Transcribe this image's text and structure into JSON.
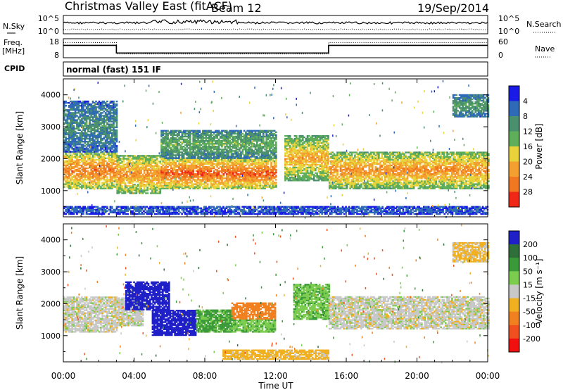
{
  "header": {
    "station": "Christmas Valley East (fitACF)",
    "beam": "Beam 12",
    "date": "19/Sep/2014"
  },
  "noise_panel": {
    "left_label": "N.Sky",
    "right_label": "N.Search",
    "left_ticks": [
      "10^5",
      "10^0"
    ],
    "right_ticks": [
      "10^5",
      "10^0"
    ]
  },
  "freq_panel": {
    "left_label_1": "Freq.",
    "left_label_2": "[MHz]",
    "right_label": "Nave",
    "left_ticks": [
      "18",
      "8"
    ],
    "right_ticks": [
      "60",
      "0"
    ],
    "freq_mhz": [
      {
        "from": 0,
        "to": 3,
        "value": 14.5
      },
      {
        "from": 3,
        "to": 15,
        "value": 10.5
      },
      {
        "from": 15,
        "to": 24,
        "value": 14.5
      }
    ],
    "nave": [
      {
        "from": 0,
        "to": 3,
        "value": 48
      },
      {
        "from": 3,
        "to": 15,
        "value": 12
      },
      {
        "from": 15,
        "to": 24,
        "value": 48
      }
    ]
  },
  "cpid": {
    "label": "CPID",
    "text": "normal (fast) 151 IF"
  },
  "time_axis": {
    "title": "Time UT",
    "ticks": [
      "00:00",
      "04:00",
      "08:00",
      "12:00",
      "16:00",
      "20:00",
      "00:00"
    ]
  },
  "chart_data": [
    {
      "type": "heatmap",
      "name": "Power",
      "xlabel": "Time UT",
      "ylabel": "Slant Range [km]",
      "xlim": [
        0,
        24
      ],
      "ylim": [
        180,
        4500
      ],
      "ytick_labels": [
        "1000",
        "2000",
        "3000",
        "4000"
      ],
      "ytick_values": [
        1000,
        2000,
        3000,
        4000
      ],
      "colorbar": {
        "label": "Power [dB]",
        "tick_labels": [
          "4",
          "8",
          "12",
          "16",
          "20",
          "24",
          "28"
        ],
        "bins": [
          {
            "color": "#1a1ae6",
            "min": 0,
            "max": 4
          },
          {
            "color": "#2e6ab8",
            "min": 4,
            "max": 8
          },
          {
            "color": "#4a8f6e",
            "min": 8,
            "max": 12
          },
          {
            "color": "#5fae5a",
            "min": 12,
            "max": 16
          },
          {
            "color": "#e8d43a",
            "min": 16,
            "max": 20
          },
          {
            "color": "#f4a030",
            "min": 20,
            "max": 24
          },
          {
            "color": "#f07820",
            "min": 24,
            "max": 28
          },
          {
            "color": "#f02818",
            "min": 28,
            "max": 32
          }
        ]
      },
      "regions": [
        {
          "t0": 0,
          "t1": 3,
          "r0": 1050,
          "r1": 2200,
          "level": 26
        },
        {
          "t0": 0,
          "t1": 3,
          "r0": 2200,
          "r1": 3800,
          "level": 10
        },
        {
          "t0": 3,
          "t1": 5.5,
          "r0": 900,
          "r1": 2100,
          "level": 24
        },
        {
          "t0": 5.5,
          "t1": 12,
          "r0": 1050,
          "r1": 2000,
          "level": 28
        },
        {
          "t0": 5.5,
          "t1": 12,
          "r0": 2000,
          "r1": 2900,
          "level": 14
        },
        {
          "t0": 12.5,
          "t1": 15,
          "r0": 1300,
          "r1": 2700,
          "level": 22
        },
        {
          "t0": 15,
          "t1": 24,
          "r0": 1050,
          "r1": 2200,
          "level": 24
        },
        {
          "t0": 22,
          "t1": 24,
          "r0": 3300,
          "r1": 4000,
          "level": 12
        },
        {
          "t0": 0,
          "t1": 24,
          "r0": 250,
          "r1": 500,
          "level": 6
        }
      ]
    },
    {
      "type": "heatmap",
      "name": "Velocity",
      "xlabel": "Time UT",
      "ylabel": "Slant Range [km]",
      "xlim": [
        0,
        24
      ],
      "ylim": [
        180,
        4500
      ],
      "ytick_labels": [
        "1000",
        "2000",
        "3000",
        "4000"
      ],
      "ytick_values": [
        1000,
        2000,
        3000,
        4000
      ],
      "colorbar": {
        "label": "Velocity [m s⁻¹]",
        "tick_labels": [
          "200",
          "100",
          "50",
          "15",
          "-15",
          "-50",
          "-100",
          "-200"
        ],
        "bins": [
          {
            "color": "#2020c8",
            "min": 150,
            "max": 250
          },
          {
            "color": "#2f6f3a",
            "min": 100,
            "max": 150
          },
          {
            "color": "#3a9a3a",
            "min": 50,
            "max": 100
          },
          {
            "color": "#7ccc50",
            "min": 15,
            "max": 50
          },
          {
            "color": "#c8c8c8",
            "min": -15,
            "max": 15
          },
          {
            "color": "#f0b020",
            "min": -50,
            "max": -15
          },
          {
            "color": "#f08020",
            "min": -100,
            "max": -50
          },
          {
            "color": "#f05020",
            "min": -150,
            "max": -100
          },
          {
            "color": "#f01010",
            "min": -250,
            "max": -150
          }
        ]
      },
      "regions": [
        {
          "t0": 0,
          "t1": 3,
          "r0": 1100,
          "r1": 2200,
          "level": 0
        },
        {
          "t0": 3,
          "t1": 4.5,
          "r0": 1300,
          "r1": 2200,
          "level": 0
        },
        {
          "t0": 3.5,
          "t1": 6,
          "r0": 1800,
          "r1": 2700,
          "level": 180
        },
        {
          "t0": 5,
          "t1": 7.5,
          "r0": 1000,
          "r1": 1800,
          "level": 180
        },
        {
          "t0": 7.5,
          "t1": 9.5,
          "r0": 1100,
          "r1": 1800,
          "level": 60
        },
        {
          "t0": 9.5,
          "t1": 12,
          "r0": 1500,
          "r1": 2000,
          "level": -70
        },
        {
          "t0": 9.5,
          "t1": 12,
          "r0": 1100,
          "r1": 1500,
          "level": 40
        },
        {
          "t0": 13,
          "t1": 15,
          "r0": 1500,
          "r1": 2600,
          "level": 40
        },
        {
          "t0": 15,
          "t1": 24,
          "r0": 1200,
          "r1": 2200,
          "level": 0
        },
        {
          "t0": 9,
          "t1": 15,
          "r0": 250,
          "r1": 550,
          "level": -30
        },
        {
          "t0": 22,
          "t1": 24,
          "r0": 3300,
          "r1": 3900,
          "level": -25
        }
      ]
    }
  ]
}
